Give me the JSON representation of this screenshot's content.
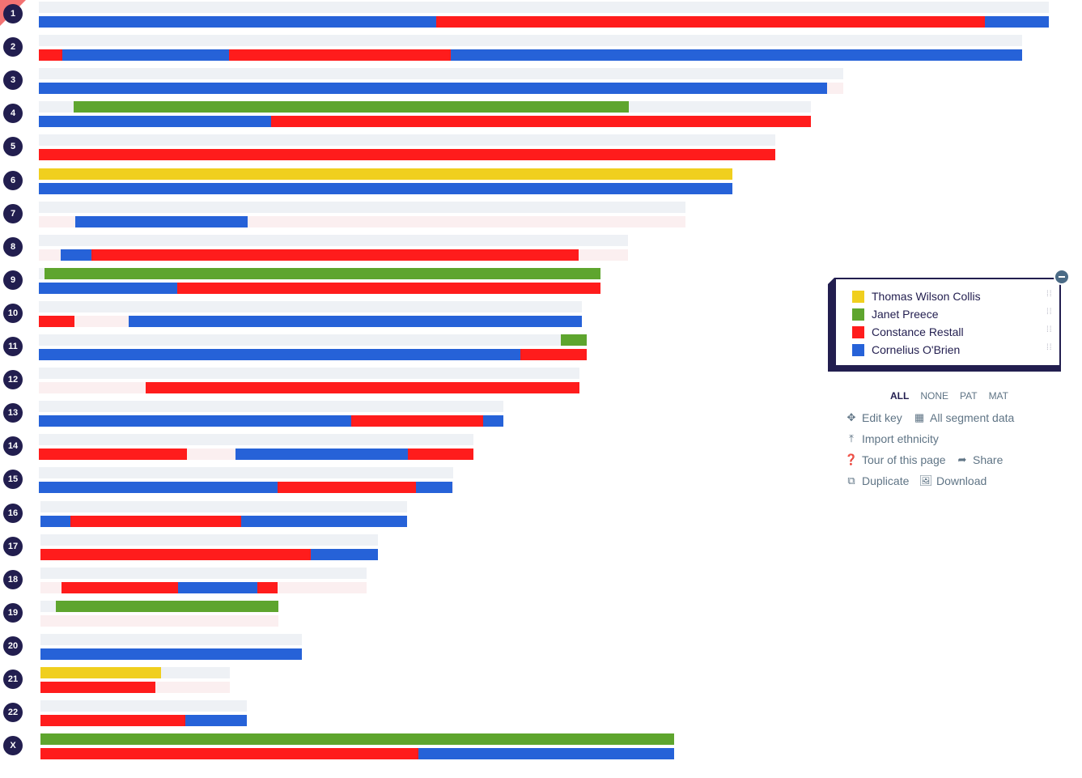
{
  "colors": {
    "empty_pat": "#eef1f5",
    "empty_mat": "#fbeff0",
    "badge": "#221e4f"
  },
  "legend": {
    "items": [
      {
        "label": "Thomas Wilson Collis",
        "color": "#f0cf1e",
        "key": "T"
      },
      {
        "label": "Janet Preece",
        "color": "#5ea52e",
        "key": "J"
      },
      {
        "label": "Constance Restall",
        "color": "#ff1c1c",
        "key": "C"
      },
      {
        "label": "Cornelius O'Brien",
        "color": "#2662d8",
        "key": "B"
      }
    ],
    "collapse_icon": "minus-icon",
    "grip_icon": "drag-handle-icon"
  },
  "filters": {
    "all": "ALL",
    "none": "NONE",
    "pat": "PAT",
    "mat": "MAT"
  },
  "actions": {
    "edit_key": "Edit key",
    "segment_data": "All segment data",
    "import_ethnicity": "Import ethnicity",
    "tour": "Tour of this page",
    "share": "Share",
    "duplicate": "Duplicate",
    "download": "Download"
  },
  "chromosomes": [
    {
      "label": "1",
      "length": 1248,
      "pat": [],
      "mat": [
        [
          0,
          491,
          "B"
        ],
        [
          491,
          1169,
          "C"
        ],
        [
          1169,
          1248,
          "B"
        ]
      ]
    },
    {
      "label": "2",
      "length": 1215,
      "pat": [],
      "mat": [
        [
          0,
          29,
          "C"
        ],
        [
          29,
          235,
          "B"
        ],
        [
          235,
          509,
          "C"
        ],
        [
          509,
          1215,
          "B"
        ]
      ]
    },
    {
      "label": "3",
      "length": 994,
      "pat": [],
      "mat": [
        [
          0,
          974,
          "B"
        ]
      ]
    },
    {
      "label": "4",
      "length": 954,
      "pat": [
        [
          43,
          729,
          "J"
        ]
      ],
      "mat": [
        [
          0,
          287,
          "B"
        ],
        [
          287,
          954,
          "C"
        ]
      ]
    },
    {
      "label": "5",
      "length": 910,
      "pat": [],
      "mat": [
        [
          0,
          910,
          "C"
        ]
      ]
    },
    {
      "label": "6",
      "length": 857,
      "pat": [
        [
          0,
          857,
          "T"
        ]
      ],
      "mat": [
        [
          0,
          857,
          "B"
        ]
      ]
    },
    {
      "label": "7",
      "length": 799,
      "pat": [],
      "mat": [
        [
          45,
          258,
          "B"
        ]
      ]
    },
    {
      "label": "8",
      "length": 728,
      "pat": [],
      "mat": [
        [
          27,
          65,
          "B"
        ],
        [
          65,
          667,
          "C"
        ]
      ]
    },
    {
      "label": "9",
      "length": 694,
      "pat": [
        [
          7,
          694,
          "J"
        ]
      ],
      "mat": [
        [
          0,
          171,
          "B"
        ],
        [
          171,
          694,
          "C"
        ]
      ]
    },
    {
      "label": "10",
      "length": 671,
      "pat": [],
      "mat": [
        [
          0,
          44,
          "C"
        ],
        [
          111,
          671,
          "B"
        ]
      ]
    },
    {
      "label": "11",
      "length": 677,
      "pat": [
        [
          645,
          677,
          "J"
        ]
      ],
      "mat": [
        [
          0,
          595,
          "B"
        ],
        [
          595,
          677,
          "C"
        ]
      ]
    },
    {
      "label": "12",
      "length": 668,
      "pat": [],
      "mat": [
        [
          132,
          668,
          "C"
        ]
      ]
    },
    {
      "label": "13",
      "length": 574,
      "pat": [],
      "mat": [
        [
          0,
          386,
          "B"
        ],
        [
          386,
          549,
          "C"
        ],
        [
          549,
          574,
          "B"
        ]
      ]
    },
    {
      "label": "14",
      "length": 537,
      "pat": [],
      "mat": [
        [
          0,
          183,
          "C"
        ],
        [
          243,
          456,
          "B"
        ],
        [
          456,
          537,
          "C"
        ]
      ]
    },
    {
      "label": "15",
      "length": 512,
      "pat": [],
      "mat": [
        [
          0,
          295,
          "B"
        ],
        [
          295,
          466,
          "C"
        ],
        [
          466,
          511,
          "B"
        ]
      ]
    },
    {
      "label": "16",
      "length": 453,
      "pat": [],
      "mat": [
        [
          0,
          37,
          "B"
        ],
        [
          37,
          248,
          "C"
        ],
        [
          248,
          453,
          "B"
        ]
      ]
    },
    {
      "label": "17",
      "length": 417,
      "pat": [],
      "mat": [
        [
          0,
          334,
          "C"
        ],
        [
          334,
          417,
          "B"
        ]
      ]
    },
    {
      "label": "18",
      "length": 403,
      "pat": [],
      "mat": [
        [
          26,
          170,
          "C"
        ],
        [
          170,
          268,
          "B"
        ],
        [
          268,
          293,
          "C"
        ]
      ]
    },
    {
      "label": "19",
      "length": 294,
      "pat": [
        [
          19,
          294,
          "J"
        ]
      ],
      "mat": []
    },
    {
      "label": "20",
      "length": 323,
      "pat": [],
      "mat": [
        [
          0,
          323,
          "B"
        ]
      ]
    },
    {
      "label": "21",
      "length": 234,
      "pat": [
        [
          0,
          149,
          "T"
        ]
      ],
      "mat": [
        [
          0,
          142,
          "C"
        ]
      ]
    },
    {
      "label": "22",
      "length": 255,
      "pat": [],
      "mat": [
        [
          0,
          179,
          "C"
        ],
        [
          179,
          255,
          "B"
        ]
      ]
    },
    {
      "label": "X",
      "length": 783,
      "pat": [
        [
          0,
          783,
          "J"
        ]
      ],
      "mat": [
        [
          0,
          467,
          "C"
        ],
        [
          467,
          783,
          "B"
        ]
      ]
    }
  ]
}
